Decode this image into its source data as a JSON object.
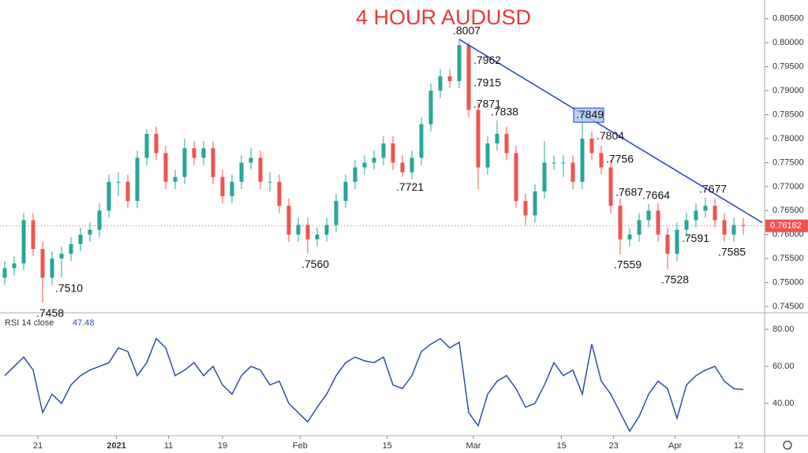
{
  "chart_data": [
    {
      "type": "candlestick",
      "title": "4 HOUR AUDUSD",
      "up_color": "#26a69a",
      "down_color": "#ef5350",
      "xlim": [
        -0.5,
        79.5
      ],
      "ylim": [
        0.7437,
        0.8089
      ],
      "xticks": [
        {
          "value": 3.5,
          "label": "21"
        },
        {
          "value": 11.8,
          "label": "2021"
        },
        {
          "value": 17.3,
          "label": "11"
        },
        {
          "value": 23,
          "label": "19"
        },
        {
          "value": 31.2,
          "label": "Feb"
        },
        {
          "value": 40.4,
          "label": "15"
        },
        {
          "value": 49.5,
          "label": "Mar"
        },
        {
          "value": 58.8,
          "label": "15"
        },
        {
          "value": 64.3,
          "label": "23"
        },
        {
          "value": 70.8,
          "label": "Apr"
        },
        {
          "value": 77.5,
          "label": "12"
        }
      ],
      "yticks": [
        {
          "value": 0.745,
          "label": "0.74500"
        },
        {
          "value": 0.75,
          "label": "0.75000"
        },
        {
          "value": 0.755,
          "label": "0.75500"
        },
        {
          "value": 0.76,
          "label": "0.76000"
        },
        {
          "value": 0.765,
          "label": "0.76500"
        },
        {
          "value": 0.77,
          "label": "0.77000"
        },
        {
          "value": 0.775,
          "label": "0.77500"
        },
        {
          "value": 0.78,
          "label": "0.78000"
        },
        {
          "value": 0.785,
          "label": "0.78500"
        },
        {
          "value": 0.79,
          "label": "0.79000"
        },
        {
          "value": 0.795,
          "label": "0.79500"
        },
        {
          "value": 0.8,
          "label": "0.80000"
        },
        {
          "value": 0.805,
          "label": "0.80500"
        }
      ],
      "current_price": {
        "value": 0.76182,
        "label": "0.76182",
        "color": "#ef5350"
      },
      "trendline": {
        "from": [
          48,
          0.8007
        ],
        "to": [
          80,
          0.7625
        ],
        "color": "#2040d0"
      },
      "candles": [
        [
          0.751,
          0.7545,
          0.7495,
          0.753
        ],
        [
          0.753,
          0.7555,
          0.7515,
          0.754
        ],
        [
          0.754,
          0.7645,
          0.7525,
          0.763
        ],
        [
          0.763,
          0.7645,
          0.7555,
          0.757
        ],
        [
          0.757,
          0.7585,
          0.7458,
          0.751
        ],
        [
          0.751,
          0.7565,
          0.7495,
          0.755
        ],
        [
          0.755,
          0.7575,
          0.751,
          0.756
        ],
        [
          0.756,
          0.7595,
          0.7545,
          0.758
        ],
        [
          0.758,
          0.7615,
          0.7565,
          0.76
        ],
        [
          0.76,
          0.7625,
          0.7585,
          0.761
        ],
        [
          0.761,
          0.7665,
          0.7595,
          0.765
        ],
        [
          0.765,
          0.7725,
          0.7635,
          0.771
        ],
        [
          0.771,
          0.773,
          0.768,
          0.771
        ],
        [
          0.771,
          0.7725,
          0.7655,
          0.767
        ],
        [
          0.767,
          0.7775,
          0.7655,
          0.776
        ],
        [
          0.776,
          0.782,
          0.7745,
          0.781
        ],
        [
          0.781,
          0.7825,
          0.7755,
          0.777
        ],
        [
          0.777,
          0.7785,
          0.7695,
          0.771
        ],
        [
          0.771,
          0.7735,
          0.7695,
          0.772
        ],
        [
          0.772,
          0.78,
          0.7705,
          0.778
        ],
        [
          0.778,
          0.7795,
          0.7745,
          0.776
        ],
        [
          0.776,
          0.7795,
          0.7745,
          0.778
        ],
        [
          0.778,
          0.7795,
          0.7705,
          0.772
        ],
        [
          0.772,
          0.7735,
          0.7665,
          0.768
        ],
        [
          0.768,
          0.7725,
          0.7665,
          0.771
        ],
        [
          0.771,
          0.7765,
          0.7695,
          0.775
        ],
        [
          0.775,
          0.778,
          0.7735,
          0.776
        ],
        [
          0.776,
          0.7775,
          0.7695,
          0.771
        ],
        [
          0.771,
          0.773,
          0.769,
          0.771
        ],
        [
          0.771,
          0.7725,
          0.7645,
          0.766
        ],
        [
          0.766,
          0.7675,
          0.7585,
          0.76
        ],
        [
          0.76,
          0.7635,
          0.7585,
          0.762
        ],
        [
          0.762,
          0.7635,
          0.756,
          0.759
        ],
        [
          0.759,
          0.7615,
          0.7575,
          0.76
        ],
        [
          0.76,
          0.7635,
          0.7585,
          0.762
        ],
        [
          0.762,
          0.7685,
          0.7605,
          0.767
        ],
        [
          0.767,
          0.7725,
          0.7655,
          0.771
        ],
        [
          0.771,
          0.7755,
          0.7695,
          0.774
        ],
        [
          0.774,
          0.7765,
          0.7725,
          0.775
        ],
        [
          0.775,
          0.7775,
          0.7735,
          0.776
        ],
        [
          0.776,
          0.7805,
          0.7745,
          0.779
        ],
        [
          0.779,
          0.7805,
          0.7735,
          0.775
        ],
        [
          0.775,
          0.7765,
          0.7721,
          0.773
        ],
        [
          0.773,
          0.7775,
          0.7715,
          0.776
        ],
        [
          0.776,
          0.7845,
          0.7745,
          0.783
        ],
        [
          0.783,
          0.7915,
          0.7815,
          0.79
        ],
        [
          0.79,
          0.7945,
          0.7885,
          0.793
        ],
        [
          0.793,
          0.7945,
          0.7905,
          0.792
        ],
        [
          0.792,
          0.8007,
          0.7905,
          0.7995
        ],
        [
          0.7995,
          0.8,
          0.7845,
          0.786
        ],
        [
          0.786,
          0.7875,
          0.7695,
          0.774
        ],
        [
          0.774,
          0.7805,
          0.7725,
          0.779
        ],
        [
          0.779,
          0.7838,
          0.7775,
          0.781
        ],
        [
          0.781,
          0.7825,
          0.7755,
          0.777
        ],
        [
          0.777,
          0.7785,
          0.7655,
          0.767
        ],
        [
          0.767,
          0.7685,
          0.762,
          0.764
        ],
        [
          0.764,
          0.7705,
          0.7625,
          0.769
        ],
        [
          0.769,
          0.7795,
          0.7675,
          0.775
        ],
        [
          0.775,
          0.7765,
          0.7735,
          0.775
        ],
        [
          0.775,
          0.7765,
          0.772,
          0.775
        ],
        [
          0.775,
          0.7765,
          0.7695,
          0.771
        ],
        [
          0.771,
          0.7849,
          0.7695,
          0.78
        ],
        [
          0.78,
          0.7815,
          0.7755,
          0.777
        ],
        [
          0.777,
          0.7785,
          0.7725,
          0.774
        ],
        [
          0.774,
          0.7755,
          0.7645,
          0.766
        ],
        [
          0.766,
          0.7675,
          0.7559,
          0.759
        ],
        [
          0.759,
          0.7615,
          0.7575,
          0.76
        ],
        [
          0.76,
          0.7645,
          0.7585,
          0.763
        ],
        [
          0.763,
          0.7664,
          0.7615,
          0.765
        ],
        [
          0.765,
          0.7665,
          0.7585,
          0.76
        ],
        [
          0.76,
          0.7615,
          0.7528,
          0.756
        ],
        [
          0.756,
          0.7625,
          0.7545,
          0.761
        ],
        [
          0.761,
          0.7645,
          0.7595,
          0.763
        ],
        [
          0.763,
          0.7665,
          0.7615,
          0.765
        ],
        [
          0.765,
          0.7677,
          0.7635,
          0.766
        ],
        [
          0.766,
          0.7675,
          0.7615,
          0.763
        ],
        [
          0.763,
          0.7645,
          0.7585,
          0.76
        ],
        [
          0.76,
          0.7635,
          0.7585,
          0.762
        ],
        [
          0.762,
          0.7635,
          0.76,
          0.7618
        ]
      ],
      "annotations": [
        {
          "text": ".8007",
          "value": 0.8007,
          "index": 48,
          "side": "above"
        },
        {
          "text": ".7962",
          "value": 0.7962,
          "index": 49,
          "side": "right"
        },
        {
          "text": ".7915",
          "value": 0.7915,
          "index": 49,
          "side": "right"
        },
        {
          "text": ".7871",
          "value": 0.7871,
          "index": 49,
          "side": "right"
        },
        {
          "text": ".7838",
          "value": 0.7838,
          "index": 52,
          "side": "above"
        },
        {
          "text": ".7849",
          "value": 0.7849,
          "index": 61,
          "side": "boxed"
        },
        {
          "text": ".7804",
          "value": 0.7804,
          "index": 62,
          "side": "right"
        },
        {
          "text": ".7756",
          "value": 0.7756,
          "index": 63,
          "side": "right"
        },
        {
          "text": ".7687",
          "value": 0.7687,
          "index": 64,
          "side": "right"
        },
        {
          "text": ".7664",
          "value": 0.7664,
          "index": 68,
          "side": "above"
        },
        {
          "text": ".7677",
          "value": 0.7677,
          "index": 74,
          "side": "above"
        },
        {
          "text": ".7721",
          "value": 0.7721,
          "index": 42,
          "side": "below"
        },
        {
          "text": ".7560",
          "value": 0.756,
          "index": 32,
          "side": "below"
        },
        {
          "text": ".7559",
          "value": 0.7559,
          "index": 65,
          "side": "below"
        },
        {
          "text": ".7528",
          "value": 0.7528,
          "index": 70,
          "side": "below"
        },
        {
          "text": ".7591",
          "value": 0.7591,
          "index": 71,
          "side": "right"
        },
        {
          "text": ".7585",
          "value": 0.7585,
          "index": 76,
          "side": "below"
        },
        {
          "text": ".7510",
          "value": 0.751,
          "index": 6,
          "side": "below"
        },
        {
          "text": ".7458",
          "value": 0.7458,
          "index": 4,
          "side": "below"
        }
      ]
    },
    {
      "type": "line",
      "title": "RSI 14 close",
      "current": 47.48,
      "color": "#2a4fa8",
      "ylim": [
        22.6,
        88.5
      ],
      "yticks": [
        {
          "value": 40,
          "label": "40.00"
        },
        {
          "value": 60,
          "label": "60.00"
        },
        {
          "value": 80,
          "label": "80.00"
        }
      ],
      "values": [
        55,
        60,
        65,
        58,
        35,
        45,
        40,
        50,
        55,
        58,
        60,
        62,
        70,
        68,
        55,
        62,
        75,
        70,
        55,
        58,
        62,
        55,
        60,
        50,
        45,
        55,
        60,
        58,
        50,
        52,
        40,
        35,
        30,
        38,
        45,
        55,
        62,
        65,
        63,
        62,
        65,
        50,
        48,
        55,
        68,
        72,
        75,
        70,
        73,
        35,
        28,
        45,
        52,
        55,
        48,
        38,
        40,
        50,
        62,
        55,
        58,
        45,
        72,
        52,
        45,
        35,
        25,
        33,
        45,
        52,
        48,
        32,
        50,
        55,
        58,
        60,
        52,
        48,
        47.48
      ]
    }
  ]
}
